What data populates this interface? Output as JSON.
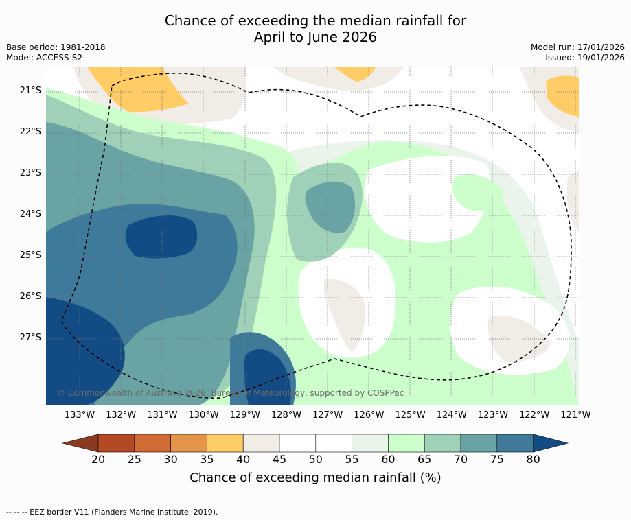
{
  "title": {
    "line1": "Chance of exceeding the median rainfall for",
    "line2": "April to June 2026"
  },
  "meta": {
    "base_period": "Base period: 1981-2018",
    "model": "Model: ACCESS-S2",
    "model_run": "Model run: 17/01/2026",
    "issued": "Issued: 19/01/2026"
  },
  "map": {
    "latitudes": [
      "21°S",
      "22°S",
      "23°S",
      "24°S",
      "25°S",
      "26°S",
      "27°S"
    ],
    "longitudes": [
      "133°W",
      "132°W",
      "131°W",
      "130°W",
      "129°W",
      "128°W",
      "127°W",
      "126°W",
      "125°W",
      "124°W",
      "123°W",
      "122°W",
      "121°W"
    ],
    "copyright": "© Commonwealth of Australia 2026, Bureau of Meteorology, supported by COSPPac"
  },
  "colorbar": {
    "ticks": [
      "20",
      "25",
      "30",
      "35",
      "40",
      "45",
      "50",
      "55",
      "60",
      "65",
      "70",
      "75",
      "80"
    ],
    "colors": {
      "below20": "#8b3a1f",
      "20-25": "#b34a25",
      "25-30": "#d26a35",
      "30-35": "#e4954a",
      "35-40": "#ffcc66",
      "40-45": "#f1ede6",
      "45-50": "#ffffff",
      "50-55": "#ffffff",
      "55-60": "#eaf4ea",
      "60-65": "#ccffcc",
      "65-70": "#9ed1b8",
      "70-75": "#6aa3a3",
      "75-80": "#3f7a9a",
      "above80": "#134b85"
    },
    "label": "Chance of exceeding median rainfall (%)"
  },
  "footer": {
    "legend_line": "--  --  -- EEZ border V11 (Flanders Marine Institute, 2019)."
  }
}
